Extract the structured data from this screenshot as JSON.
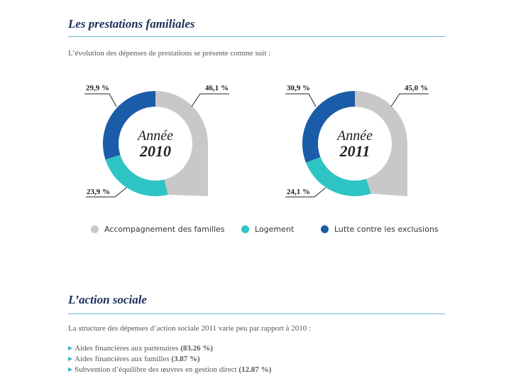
{
  "section1": {
    "title": "Les prestations familiales",
    "intro": "L’évolution des dépenses de prestations se présente comme suit :"
  },
  "colors": {
    "accompagnement": "#c8c8c8",
    "logement": "#2fc4c4",
    "exclusions": "#1a5ca8",
    "rule": "#5fb8c2",
    "title": "#1b2f5a",
    "arrow": "#3fb3c9"
  },
  "chart_data": [
    {
      "type": "pie",
      "subtype": "donut",
      "center_label_top": "Année",
      "center_label_bottom": "2010",
      "categories": [
        "Accompagnement des familles",
        "Logement",
        "Lutte contre les exclusions"
      ],
      "values": [
        46.1,
        23.9,
        29.9
      ],
      "value_labels": [
        "46,1 %",
        "23,9 %",
        "29,9 %"
      ]
    },
    {
      "type": "pie",
      "subtype": "donut",
      "center_label_top": "Année",
      "center_label_bottom": "2011",
      "categories": [
        "Accompagnement des familles",
        "Logement",
        "Lutte contre les exclusions"
      ],
      "values": [
        45.0,
        24.1,
        30.9
      ],
      "value_labels": [
        "45,0 %",
        "24,1 %",
        "30,9 %"
      ]
    }
  ],
  "legend": [
    {
      "label": "Accompagnement des familles",
      "icon": "circle",
      "color": "#c8c8c8"
    },
    {
      "label": "Logement",
      "icon": "circle",
      "color": "#2fc4c4"
    },
    {
      "label": "Lutte contre les exclusions",
      "icon": "circle",
      "color": "#1a5ca8"
    }
  ],
  "section2": {
    "title": "L’action sociale",
    "intro": "La structure des dépenses d’action sociale 2011 varie peu par rapport à 2010 :",
    "bullet_icon": "▶",
    "items": [
      {
        "text": "Aides financières aux partenaires",
        "amount": "(83.26 %)"
      },
      {
        "text": "Aides financières aux familles",
        "amount": "(3.87 %)"
      },
      {
        "text": "Subvention d’équilibre des œuvres en gestion direct",
        "amount": "(12.87 %)"
      }
    ]
  }
}
